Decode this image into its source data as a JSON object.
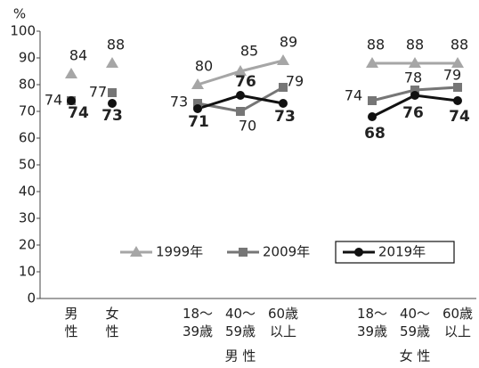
{
  "chart_data": [
    {
      "type": "point",
      "y_unit": "%",
      "ylim": [
        0,
        100
      ],
      "yticks": [
        0,
        10,
        20,
        30,
        40,
        50,
        60,
        70,
        80,
        90,
        100
      ],
      "categories": [
        "男\n性",
        "女\n性"
      ],
      "series": [
        {
          "name": "1999年",
          "color": "#a6a6a6",
          "marker": "triangle",
          "values": [
            84,
            88
          ]
        },
        {
          "name": "2009年",
          "color": "#767676",
          "marker": "square",
          "values": [
            74,
            77
          ]
        },
        {
          "name": "2019年",
          "color": "#111111",
          "marker": "circle",
          "values": [
            74,
            73
          ]
        }
      ]
    },
    {
      "type": "line",
      "xlabel": "男 性",
      "ylim": [
        0,
        100
      ],
      "categories": [
        "18〜\n39歳",
        "40〜\n59歳",
        "60歳\n以上"
      ],
      "series": [
        {
          "name": "1999年",
          "color": "#a6a6a6",
          "marker": "triangle",
          "values": [
            80,
            85,
            89
          ]
        },
        {
          "name": "2009年",
          "color": "#767676",
          "marker": "square",
          "values": [
            73,
            70,
            79
          ]
        },
        {
          "name": "2019年",
          "color": "#111111",
          "marker": "circle",
          "values": [
            71,
            76,
            73
          ]
        }
      ]
    },
    {
      "type": "line",
      "xlabel": "女 性",
      "ylim": [
        0,
        100
      ],
      "categories": [
        "18〜\n39歳",
        "40〜\n59歳",
        "60歳\n以上"
      ],
      "series": [
        {
          "name": "1999年",
          "color": "#a6a6a6",
          "marker": "triangle",
          "values": [
            88,
            88,
            88
          ]
        },
        {
          "name": "2009年",
          "color": "#767676",
          "marker": "square",
          "values": [
            74,
            78,
            79
          ]
        },
        {
          "name": "2019年",
          "color": "#111111",
          "marker": "circle",
          "values": [
            68,
            76,
            74
          ]
        }
      ]
    }
  ]
}
